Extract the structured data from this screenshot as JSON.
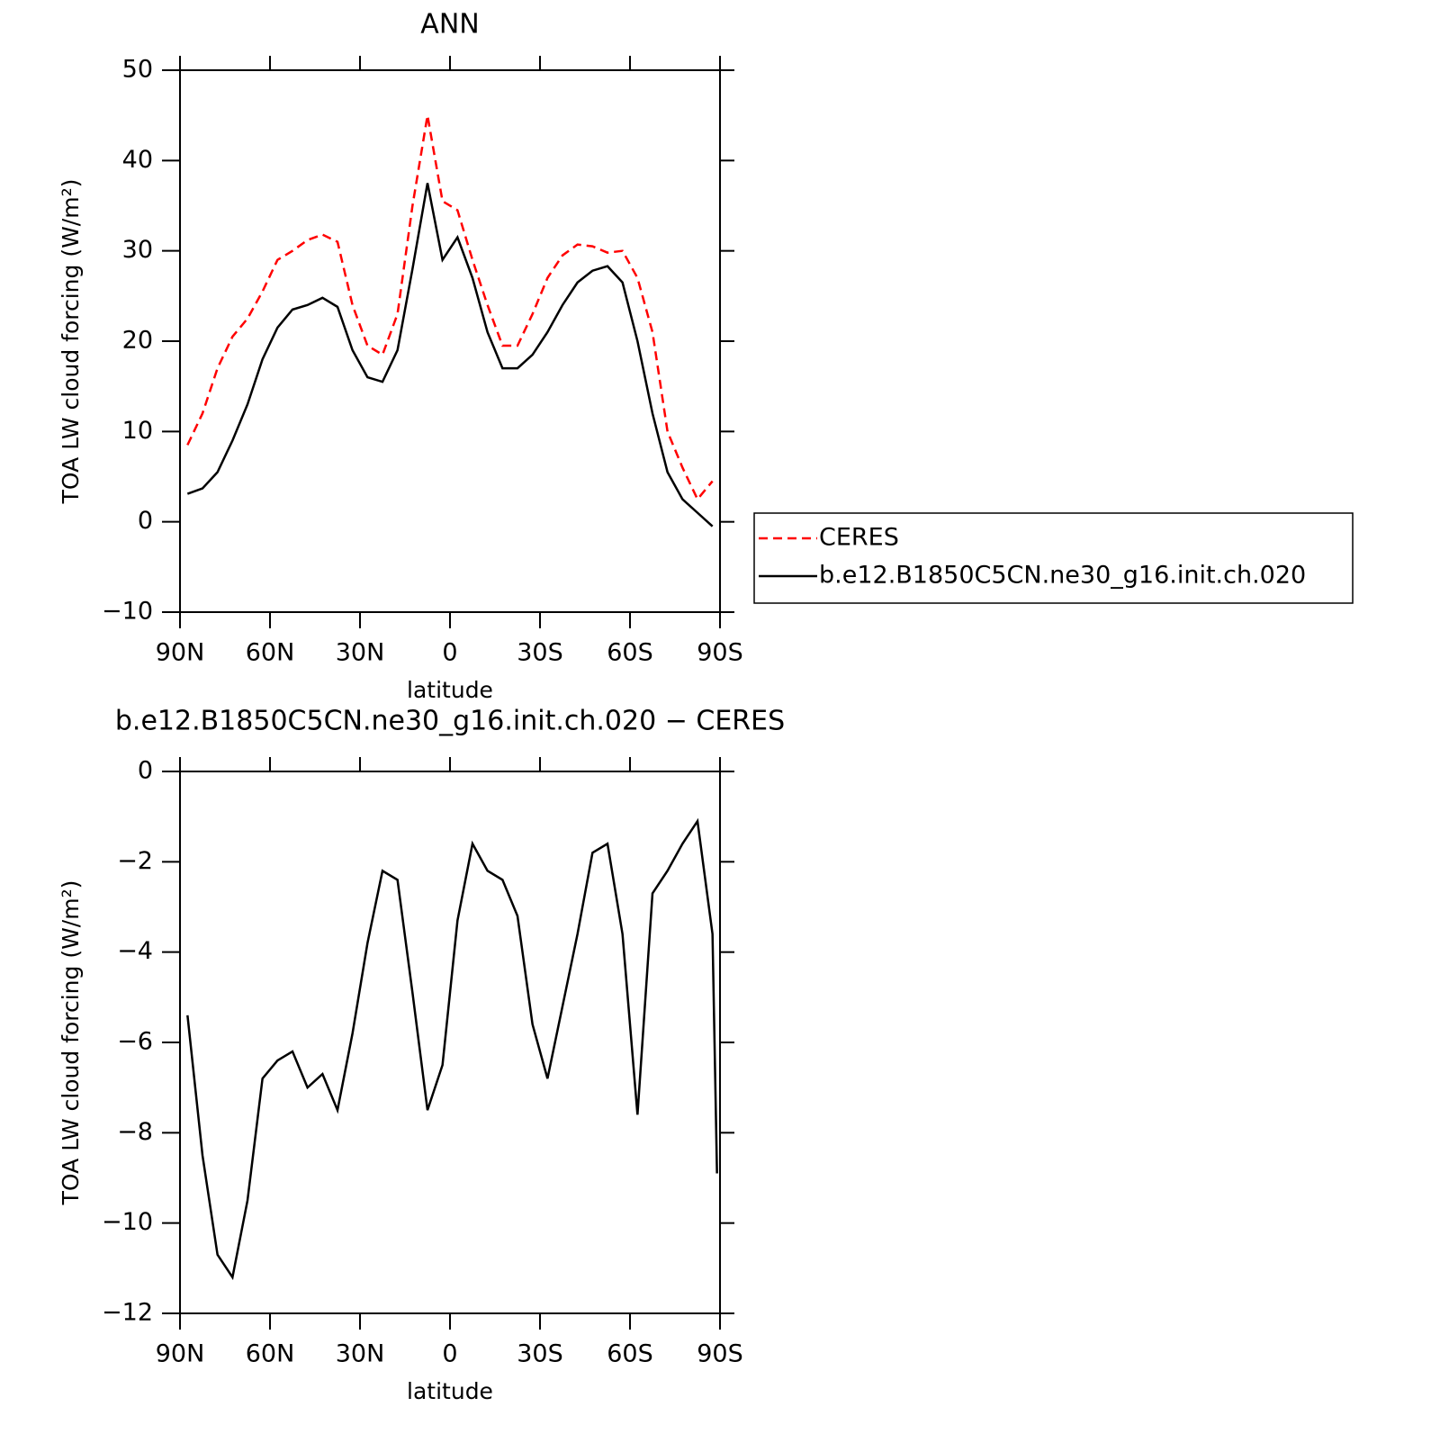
{
  "chart_data": [
    {
      "type": "line",
      "title": "ANN",
      "xlabel": "latitude",
      "ylabel": "TOA LW cloud forcing (W/m²)",
      "x": [
        87.5,
        82.5,
        77.5,
        72.5,
        67.5,
        62.5,
        57.5,
        52.5,
        47.5,
        42.5,
        37.5,
        32.5,
        27.5,
        22.5,
        17.5,
        12.5,
        7.5,
        2.5,
        -2.5,
        -7.5,
        -12.5,
        -17.5,
        -22.5,
        -27.5,
        -32.5,
        -37.5,
        -42.5,
        -47.5,
        -52.5,
        -57.5,
        -62.5,
        -67.5,
        -72.5,
        -77.5,
        -82.5,
        -87.5
      ],
      "series": [
        {
          "name": "CERES",
          "color": "#ff0000",
          "line_style": "dashed",
          "values": [
            8.5,
            12,
            17,
            20.5,
            22.5,
            25.5,
            29,
            30,
            31.2,
            31.8,
            31,
            24,
            19.5,
            18.5,
            23,
            35,
            45,
            35.5,
            34.5,
            29,
            24,
            19.5,
            19.5,
            23,
            27,
            29.5,
            30.7,
            30.5,
            29.8,
            30,
            27,
            21,
            10,
            6,
            2.5,
            4.5
          ]
        },
        {
          "name": "b.e12.B1850C5CN.ne30_g16.init.ch.020",
          "color": "#000000",
          "line_style": "solid",
          "values": [
            3.1,
            3.7,
            5.5,
            9,
            13,
            18,
            21.5,
            23.5,
            24,
            24.8,
            23.8,
            19,
            16,
            15.5,
            19,
            28,
            37.5,
            29,
            31.5,
            27,
            21,
            17,
            17,
            18.5,
            21,
            24,
            26.5,
            27.8,
            28.3,
            26.5,
            20,
            12,
            5.5,
            2.5,
            1,
            -0.5
          ]
        }
      ],
      "xlim": [
        90,
        -90
      ],
      "xticks": [
        {
          "value": 90,
          "label": "90N"
        },
        {
          "value": 60,
          "label": "60N"
        },
        {
          "value": 30,
          "label": "30N"
        },
        0,
        {
          "value": -30,
          "label": "30S"
        },
        {
          "value": -60,
          "label": "60S"
        },
        {
          "value": -90,
          "label": "90S"
        }
      ],
      "ylim": [
        -10,
        50
      ],
      "yticks": [
        {
          "value": -10,
          "label": "−10"
        },
        0,
        10,
        20,
        30,
        40,
        50
      ],
      "legend": "right"
    },
    {
      "type": "line",
      "title": "b.e12.B1850C5CN.ne30_g16.init.ch.020 − CERES",
      "xlabel": "latitude",
      "ylabel": "TOA LW cloud forcing (W/m²)",
      "x": [
        87.5,
        82.5,
        77.5,
        72.5,
        67.5,
        62.5,
        57.5,
        52.5,
        47.5,
        42.5,
        37.5,
        32.5,
        27.5,
        22.5,
        17.5,
        12.5,
        7.5,
        2.5,
        -2.5,
        -7.5,
        -12.5,
        -17.5,
        -22.5,
        -27.5,
        -32.5,
        -37.5,
        -42.5,
        -47.5,
        -52.5,
        -57.5,
        -62.5,
        -67.5,
        -72.5,
        -77.5,
        -82.5,
        -87.5,
        -89
      ],
      "series": [
        {
          "color": "#000000",
          "line_style": "solid",
          "values": [
            -5.4,
            -8.5,
            -10.7,
            -11.2,
            -9.5,
            -6.8,
            -6.4,
            -6.2,
            -7,
            -6.7,
            -7.5,
            -5.8,
            -3.8,
            -2.2,
            -2.4,
            -4.9,
            -7.5,
            -6.5,
            -3.3,
            -1.6,
            -2.2,
            -2.4,
            -3.2,
            -5.6,
            -6.8,
            -5.2,
            -3.6,
            -1.8,
            -1.6,
            -3.6,
            -7.6,
            -2.7,
            -2.2,
            -1.6,
            -1.1,
            -3.6,
            -8.9
          ]
        }
      ],
      "xlim": [
        90,
        -90
      ],
      "xticks": [
        {
          "value": 90,
          "label": "90N"
        },
        {
          "value": 60,
          "label": "60N"
        },
        {
          "value": 30,
          "label": "30N"
        },
        0,
        {
          "value": -30,
          "label": "30S"
        },
        {
          "value": -60,
          "label": "60S"
        },
        {
          "value": -90,
          "label": "90S"
        }
      ],
      "ylim": [
        -12,
        0
      ],
      "yticks": [
        {
          "value": -12,
          "label": "−12"
        },
        {
          "value": -10,
          "label": "−10"
        },
        {
          "value": -8,
          "label": "−8"
        },
        {
          "value": -6,
          "label": "−6"
        },
        {
          "value": -4,
          "label": "−4"
        },
        {
          "value": -2,
          "label": "−2"
        },
        0
      ]
    }
  ]
}
